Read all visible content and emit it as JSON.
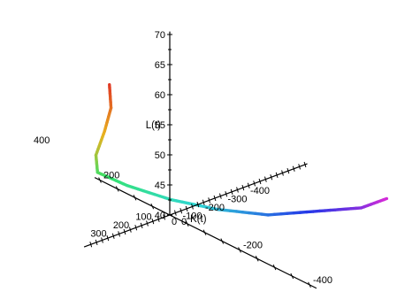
{
  "chart_data": {
    "type": "line",
    "plot_style": "3d-parametric-space-curve",
    "title": "",
    "axes": {
      "K": {
        "label": "K(t)",
        "origin_label": "0",
        "tick_labels": [
          "400",
          "200",
          "-200",
          "-400"
        ]
      },
      "L": {
        "label": "L(t)",
        "tick_labels": [
          "40",
          "45",
          "50",
          "55",
          "60",
          "65",
          "70"
        ]
      },
      "third": {
        "label": "",
        "origin_label": "0",
        "tick_labels": [
          "300",
          "200",
          "100",
          "-100",
          "-200",
          "-300",
          "-400"
        ]
      }
    },
    "series": [
      {
        "points_estimated": [
          {
            "third": 500,
            "K": -150,
            "L": 73
          },
          {
            "third": 400,
            "K": -90,
            "L": 66
          },
          {
            "third": 320,
            "K": -20,
            "L": 59
          },
          {
            "third": 250,
            "K": 50,
            "L": 52
          },
          {
            "third": 150,
            "K": 110,
            "L": 46
          },
          {
            "third": 50,
            "K": 90,
            "L": 43
          },
          {
            "third": -50,
            "K": 30,
            "L": 41
          },
          {
            "third": -150,
            "K": -40,
            "L": 40
          },
          {
            "third": -250,
            "K": -120,
            "L": 40
          },
          {
            "third": -340,
            "K": -210,
            "L": 42
          },
          {
            "third": -400,
            "K": -290,
            "L": 44
          },
          {
            "third": -420,
            "K": -350,
            "L": 47
          }
        ]
      }
    ],
    "color_gradient": [
      "#e03524",
      "#e8b21f",
      "#36e36a",
      "#2fd6d4",
      "#2538e8",
      "#d62ad8"
    ],
    "grid": false,
    "legend": "none"
  }
}
